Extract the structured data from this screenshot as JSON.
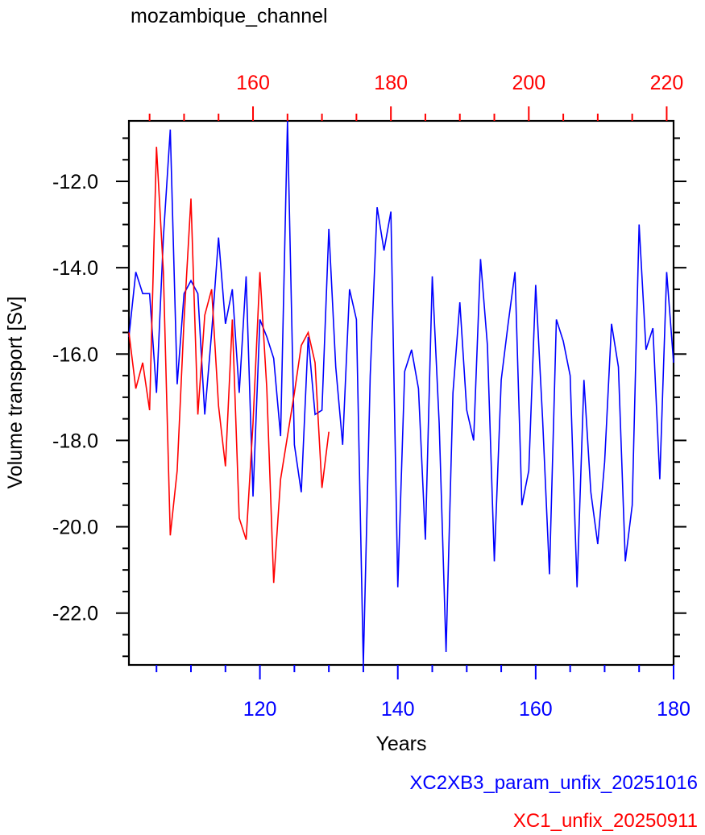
{
  "chart_data": {
    "type": "line",
    "title": "mozambique_channel",
    "xlabel": "Years",
    "ylabel": "Volume transport [Sv]",
    "bottom_axis": {
      "range": [
        101,
        180
      ],
      "ticks": [
        120,
        140,
        160,
        180
      ],
      "color": "#0000ff"
    },
    "top_axis": {
      "range": [
        142,
        221
      ],
      "ticks": [
        160,
        180,
        200,
        220
      ],
      "color": "#ff0000"
    },
    "ylim": [
      -23.2,
      -10.6
    ],
    "yticks": [
      -12.0,
      -14.0,
      -16.0,
      -18.0,
      -20.0,
      -22.0
    ],
    "grid": false,
    "legend": [
      "XC2XB3_param_unfix_20251016",
      "XC1_unfix_20250911"
    ],
    "series": [
      {
        "name": "XC2XB3_param_unfix_20251016",
        "axis": "bottom",
        "color": "#0000ff",
        "x_start": 101,
        "values": [
          -15.6,
          -14.1,
          -14.6,
          -14.6,
          -16.9,
          -13.3,
          -10.8,
          -16.7,
          -14.6,
          -14.3,
          -14.6,
          -17.4,
          -15.5,
          -13.3,
          -15.3,
          -14.5,
          -16.9,
          -14.2,
          -19.3,
          -15.2,
          -15.6,
          -16.1,
          -17.9,
          -10.6,
          -18.1,
          -19.2,
          -15.6,
          -17.4,
          -17.3,
          -13.1,
          -16.3,
          -18.1,
          -14.5,
          -15.2,
          -23.2,
          -16.5,
          -12.6,
          -13.6,
          -12.7,
          -21.4,
          -16.4,
          -15.9,
          -16.8,
          -20.3,
          -14.2,
          -17.6,
          -22.9,
          -16.9,
          -14.8,
          -17.3,
          -18.0,
          -13.8,
          -15.8,
          -20.8,
          -16.6,
          -15.3,
          -14.1,
          -19.5,
          -18.7,
          -14.4,
          -17.5,
          -21.1,
          -15.2,
          -15.7,
          -16.5,
          -21.4,
          -16.6,
          -19.2,
          -20.4,
          -18.5,
          -15.3,
          -16.3,
          -20.8,
          -19.5,
          -13.0,
          -15.9,
          -15.4,
          -18.9,
          -14.1,
          -16.2
        ]
      },
      {
        "name": "XC1_unfix_20250911",
        "axis": "top",
        "color": "#ff0000",
        "x_start": 142,
        "values": [
          -15.5,
          -16.8,
          -16.2,
          -17.3,
          -11.2,
          -14.1,
          -20.2,
          -18.7,
          -15.2,
          -12.4,
          -17.4,
          -15.1,
          -14.5,
          -17.2,
          -18.6,
          -15.2,
          -19.8,
          -20.3,
          -17.6,
          -14.1,
          -16.8,
          -21.3,
          -18.9,
          -17.9,
          -16.9,
          -15.8,
          -15.5,
          -16.2,
          -19.1,
          -17.8
        ]
      }
    ]
  }
}
